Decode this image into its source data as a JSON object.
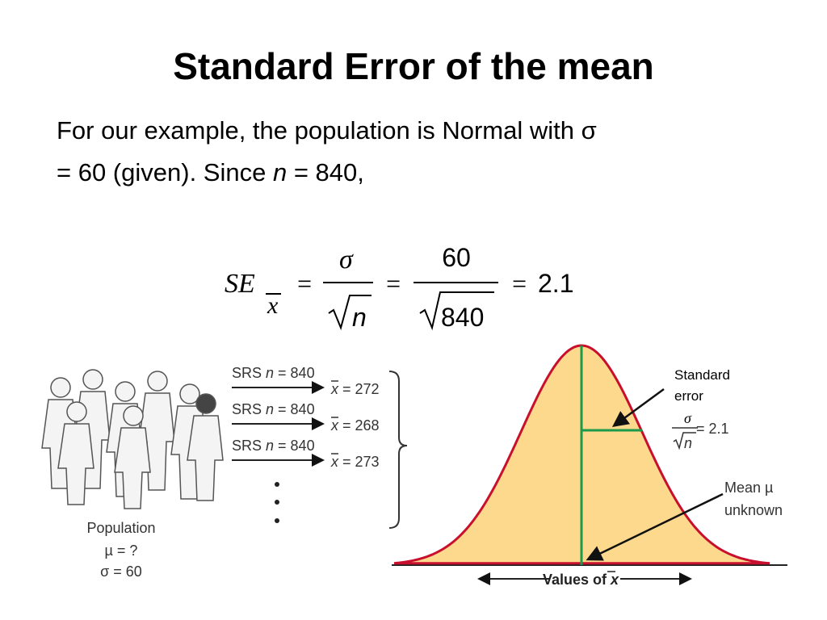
{
  "title": "Standard Error of the mean",
  "body": {
    "line1": "For our example, the population is Normal with σ",
    "line2_before": "= 60 (given). Since ",
    "n": "n",
    "line2_after": " = 840,"
  },
  "formula": {
    "se": "SE",
    "subscript": "x",
    "eq1": "=",
    "numerator1": "σ",
    "denominator1": "n",
    "eq2": "=",
    "numerator2": "60",
    "denominator2": "840",
    "eq3": "=",
    "result": "2.1"
  },
  "figure": {
    "population": {
      "label": "Population",
      "mu": "µ = ?",
      "sigma": "σ = 60"
    },
    "samples": [
      {
        "srs": "SRS ",
        "n": "n",
        "size": " = 840",
        "xbar": "x",
        "mean": " = 272"
      },
      {
        "srs": "SRS ",
        "n": "n",
        "size": " = 840",
        "xbar": "x",
        "mean": " = 268"
      },
      {
        "srs": "SRS ",
        "n": "n",
        "size": " = 840",
        "xbar": "x",
        "mean": " = 273"
      }
    ],
    "annotation_se": {
      "line1": "Standard",
      "line2": "error",
      "numerator": "σ",
      "denominator": "n",
      "value": " = 2.1"
    },
    "annotation_mean": {
      "line1": "Mean µ",
      "line2": "unknown"
    },
    "axis_label": {
      "text": "Values of ",
      "xbar": "x"
    }
  }
}
